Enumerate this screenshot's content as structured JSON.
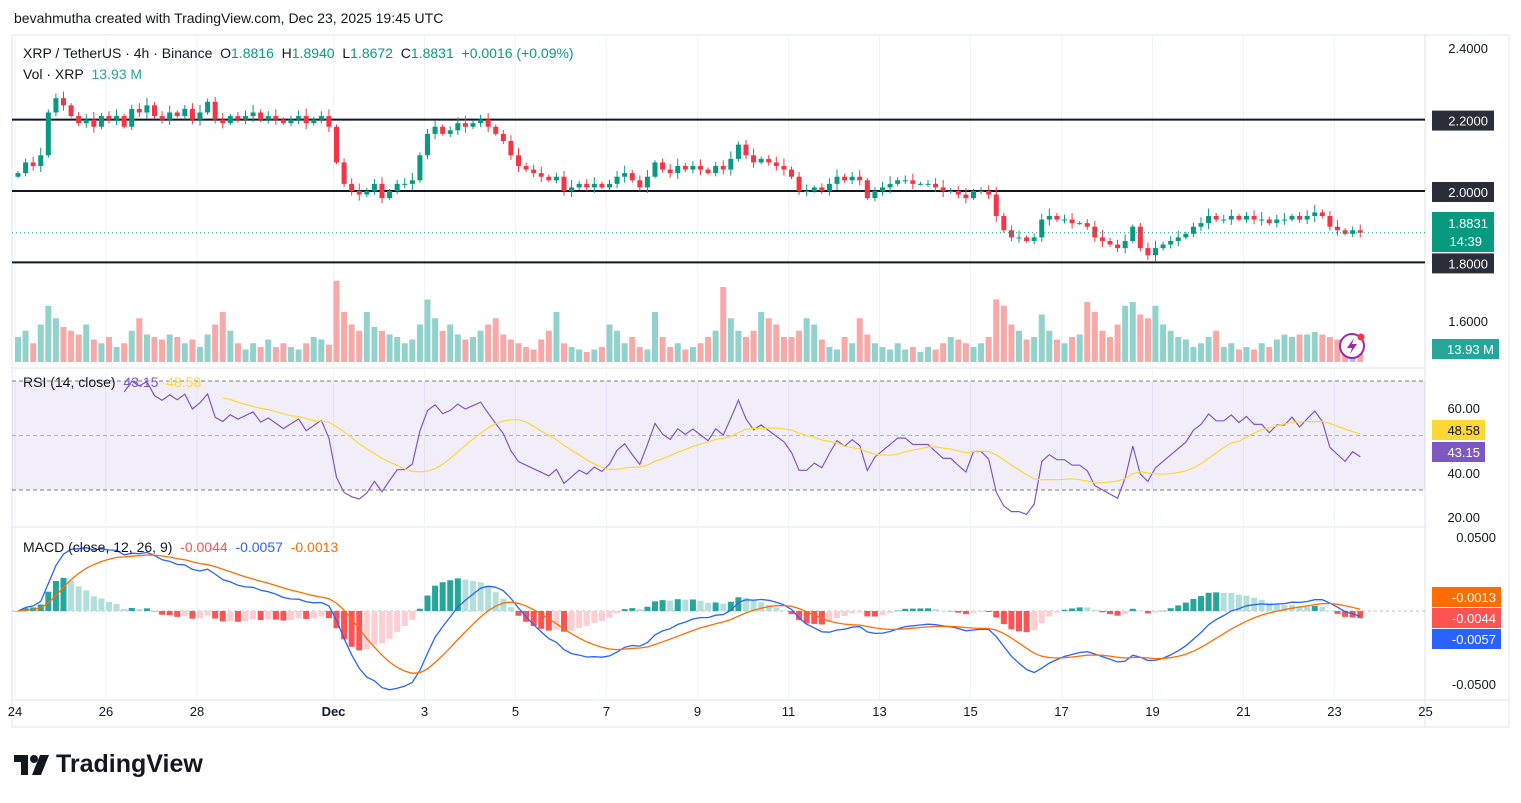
{
  "header": {
    "credit": "bevahmutha created with TradingView.com, Dec 23, 2025 19:45 UTC"
  },
  "legend": {
    "symbol": "XRP / TetherUS · 4h · Binance",
    "o_label": "O",
    "o": "1.8816",
    "h_label": "H",
    "h": "1.8940",
    "l_label": "L",
    "l": "1.8672",
    "c_label": "C",
    "c": "1.8831",
    "change": "+0.0016 (+0.09%)",
    "vol_label": "Vol · XRP",
    "vol": "13.93 M"
  },
  "price_axis": {
    "ticks": [
      "2.4000",
      "1.6000"
    ],
    "levels": [
      {
        "value": 2.2,
        "label": "2.2000"
      },
      {
        "value": 2.0,
        "label": "2.0000"
      },
      {
        "value": 1.8,
        "label": "1.8000"
      }
    ],
    "current_price": "1.8831",
    "countdown": "14:39",
    "volume_badge": "13.93 M"
  },
  "rsi": {
    "title": "RSI (14, close)",
    "value": "43.15",
    "ma": "48.58",
    "ticks": [
      "60.00",
      "40.00",
      "20.00"
    ]
  },
  "macd": {
    "title": "MACD (close, 12, 26, 9)",
    "hist": "-0.0044",
    "macd": "-0.0057",
    "signal": "-0.0013",
    "ticks": [
      "0.0500",
      "-0.0500"
    ]
  },
  "time_axis": [
    {
      "label": "24",
      "day": 0
    },
    {
      "label": "26",
      "day": 2
    },
    {
      "label": "28",
      "day": 4
    },
    {
      "label": "Dec",
      "day": 7
    },
    {
      "label": "3",
      "day": 9
    },
    {
      "label": "5",
      "day": 11
    },
    {
      "label": "7",
      "day": 13
    },
    {
      "label": "9",
      "day": 15
    },
    {
      "label": "11",
      "day": 17
    },
    {
      "label": "13",
      "day": 19
    },
    {
      "label": "15",
      "day": 21
    },
    {
      "label": "17",
      "day": 23
    },
    {
      "label": "19",
      "day": 25
    },
    {
      "label": "21",
      "day": 27
    },
    {
      "label": "23",
      "day": 29
    },
    {
      "label": "25",
      "day": 31
    }
  ],
  "branding": {
    "logo_text": "TradingView"
  },
  "colors": {
    "up": "#089981",
    "down": "#f23645",
    "vol_up": "#92d2cc",
    "vol_down": "#f7a9a7",
    "rsi": "#7e57c2",
    "rsi_ma": "#fdd835",
    "macd": "#2962ff",
    "signal": "#ff6d00"
  },
  "chart_data": {
    "type": "candlestick",
    "title": "XRP / TetherUS · 4h · Binance",
    "interval": "4h",
    "start": "Nov 24",
    "ylim": [
      1.6,
      2.4
    ],
    "closes": [
      2.05,
      2.08,
      2.07,
      2.1,
      2.22,
      2.26,
      2.24,
      2.21,
      2.19,
      2.2,
      2.18,
      2.21,
      2.2,
      2.21,
      2.18,
      2.23,
      2.22,
      2.24,
      2.21,
      2.2,
      2.22,
      2.21,
      2.23,
      2.2,
      2.22,
      2.25,
      2.2,
      2.19,
      2.21,
      2.2,
      2.21,
      2.22,
      2.2,
      2.21,
      2.2,
      2.19,
      2.2,
      2.21,
      2.19,
      2.2,
      2.21,
      2.18,
      2.08,
      2.02,
      2.0,
      1.99,
      2.0,
      2.02,
      1.98,
      2.0,
      2.02,
      2.02,
      2.03,
      2.1,
      2.16,
      2.18,
      2.16,
      2.17,
      2.19,
      2.18,
      2.19,
      2.2,
      2.18,
      2.16,
      2.14,
      2.1,
      2.07,
      2.06,
      2.05,
      2.04,
      2.03,
      2.04,
      2.0,
      2.01,
      2.02,
      2.01,
      2.02,
      2.01,
      2.02,
      2.04,
      2.05,
      2.03,
      2.01,
      2.04,
      2.08,
      2.06,
      2.05,
      2.07,
      2.06,
      2.07,
      2.06,
      2.05,
      2.07,
      2.06,
      2.09,
      2.13,
      2.1,
      2.08,
      2.09,
      2.08,
      2.07,
      2.06,
      2.04,
      2.0,
      2.0,
      2.01,
      2.0,
      2.02,
      2.04,
      2.03,
      2.04,
      2.03,
      1.98,
      2.0,
      2.01,
      2.02,
      2.03,
      2.03,
      2.02,
      2.02,
      2.02,
      2.01,
      2.0,
      2.0,
      1.99,
      1.98,
      2.0,
      2.0,
      1.99,
      1.93,
      1.89,
      1.87,
      1.87,
      1.86,
      1.87,
      1.92,
      1.93,
      1.92,
      1.92,
      1.91,
      1.91,
      1.9,
      1.87,
      1.86,
      1.85,
      1.84,
      1.86,
      1.9,
      1.84,
      1.82,
      1.84,
      1.85,
      1.86,
      1.87,
      1.88,
      1.9,
      1.91,
      1.93,
      1.92,
      1.92,
      1.93,
      1.92,
      1.93,
      1.92,
      1.92,
      1.91,
      1.92,
      1.92,
      1.93,
      1.92,
      1.93,
      1.94,
      1.93,
      1.9,
      1.89,
      1.88,
      1.89,
      1.8831
    ],
    "volumes_m": [
      20,
      25,
      15,
      30,
      45,
      35,
      28,
      25,
      22,
      30,
      18,
      15,
      20,
      12,
      15,
      25,
      35,
      22,
      20,
      18,
      22,
      20,
      15,
      18,
      12,
      22,
      30,
      40,
      25,
      15,
      10,
      15,
      12,
      18,
      12,
      15,
      12,
      10,
      15,
      20,
      18,
      14,
      65,
      40,
      30,
      25,
      40,
      28,
      25,
      22,
      20,
      15,
      18,
      30,
      50,
      35,
      25,
      30,
      22,
      18,
      20,
      25,
      30,
      35,
      22,
      18,
      15,
      12,
      10,
      18,
      25,
      40,
      15,
      12,
      10,
      8,
      10,
      12,
      30,
      25,
      15,
      20,
      12,
      10,
      40,
      20,
      12,
      15,
      10,
      12,
      15,
      20,
      25,
      60,
      35,
      25,
      20,
      25,
      40,
      35,
      30,
      20,
      20,
      25,
      35,
      30,
      18,
      12,
      10,
      20,
      15,
      35,
      22,
      15,
      12,
      10,
      15,
      10,
      12,
      8,
      12,
      10,
      15,
      20,
      18,
      15,
      12,
      15,
      20,
      50,
      45,
      30,
      25,
      18,
      20,
      38,
      25,
      18,
      15,
      20,
      22,
      48,
      40,
      25,
      20,
      30,
      45,
      48,
      38,
      35,
      45,
      30,
      25,
      20,
      18,
      12,
      15,
      20,
      25,
      12,
      15,
      10,
      12,
      10,
      15,
      12,
      18,
      22,
      20,
      22,
      22,
      24,
      22,
      20,
      18,
      14,
      10,
      13.93
    ]
  }
}
